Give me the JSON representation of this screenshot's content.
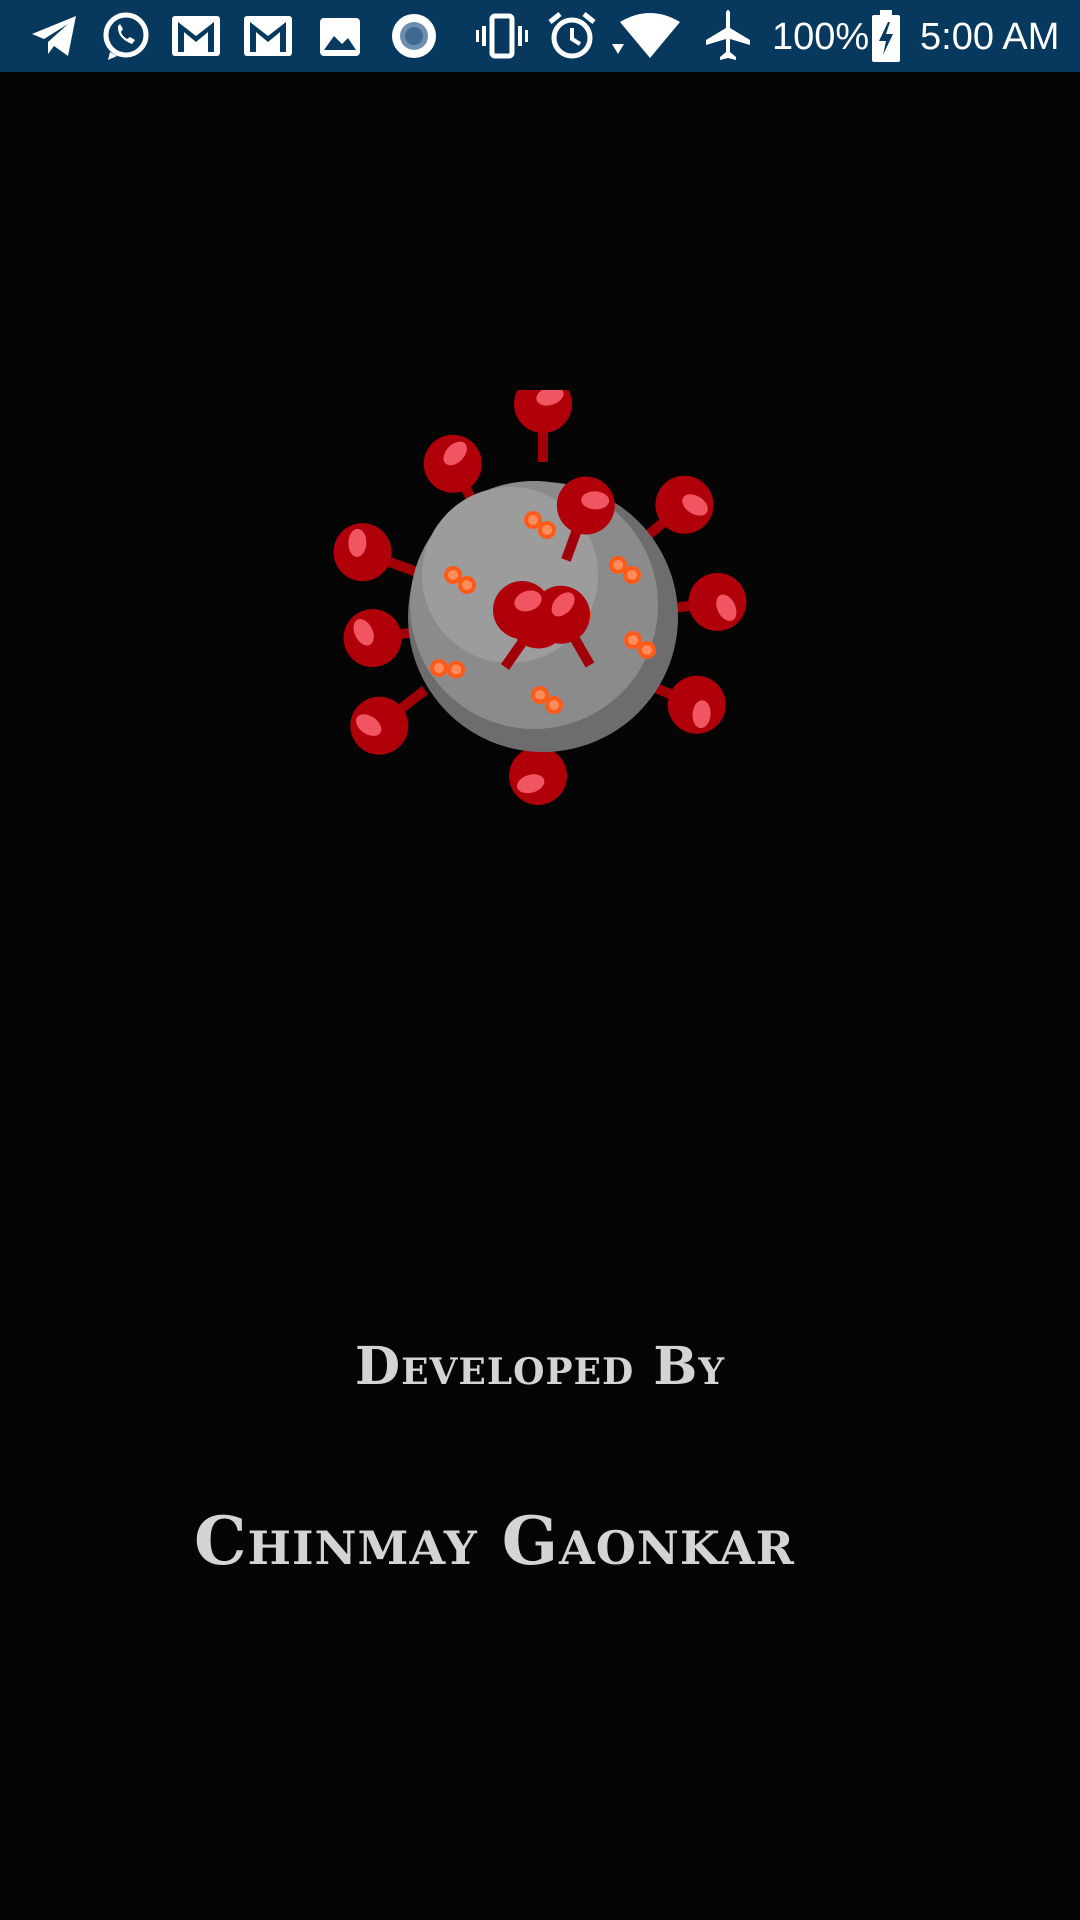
{
  "status_bar": {
    "background_color": "#07385e",
    "notification_icons": [
      "telegram-icon",
      "whatsapp-icon",
      "gmail-icon",
      "gmail-icon",
      "gallery-image-icon",
      "record-icon"
    ],
    "system_icons": [
      "vibrate-icon",
      "alarm-icon",
      "wifi-icon",
      "airplane-mode-icon",
      "battery-charging-icon"
    ],
    "battery_level": "100%",
    "time": "5:00 AM"
  },
  "splash": {
    "logo_icon": "coronavirus-icon",
    "developed_by_label": "Developed By",
    "developer_name": "Chinmay Gaonkar",
    "text_color": "#d4d4d4",
    "background_color": "#050505"
  }
}
